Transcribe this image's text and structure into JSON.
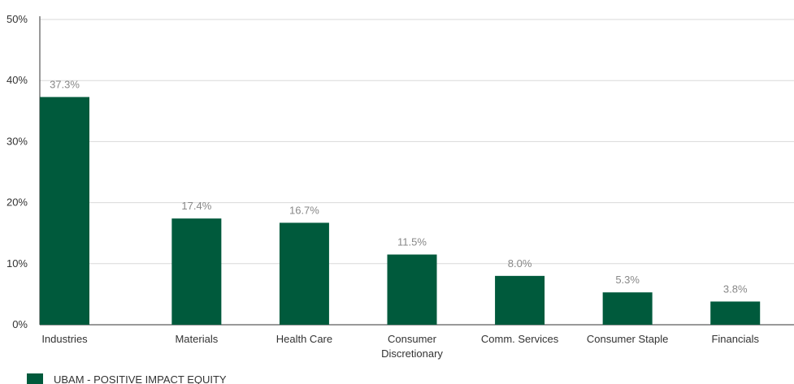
{
  "colors": {
    "bar": "#005a3c",
    "grid": "#d9d9d9",
    "axis": "#333333"
  },
  "chart_data": {
    "type": "bar",
    "categories": [
      [
        "Industries"
      ],
      [
        "Materials"
      ],
      [
        "Health Care"
      ],
      [
        "Consumer",
        "Discretionary"
      ],
      [
        "Comm. Services"
      ],
      [
        "Consumer Staple"
      ],
      [
        "Financials"
      ]
    ],
    "series": [
      {
        "name": "UBAM - POSITIVE IMPACT EQUITY",
        "values": [
          37.3,
          17.4,
          16.7,
          11.5,
          8.0,
          5.3,
          3.8
        ],
        "labels": [
          "37.3%",
          "17.4%",
          "16.7%",
          "11.5%",
          "8.0%",
          "5.3%",
          "3.8%"
        ]
      }
    ],
    "ylim": [
      0,
      50
    ],
    "yticks": [
      0,
      10,
      20,
      30,
      40,
      50
    ],
    "ytick_labels": [
      "0%",
      "10%",
      "20%",
      "30%",
      "40%",
      "50%"
    ],
    "grid": true,
    "legend_position": "bottom-left"
  }
}
